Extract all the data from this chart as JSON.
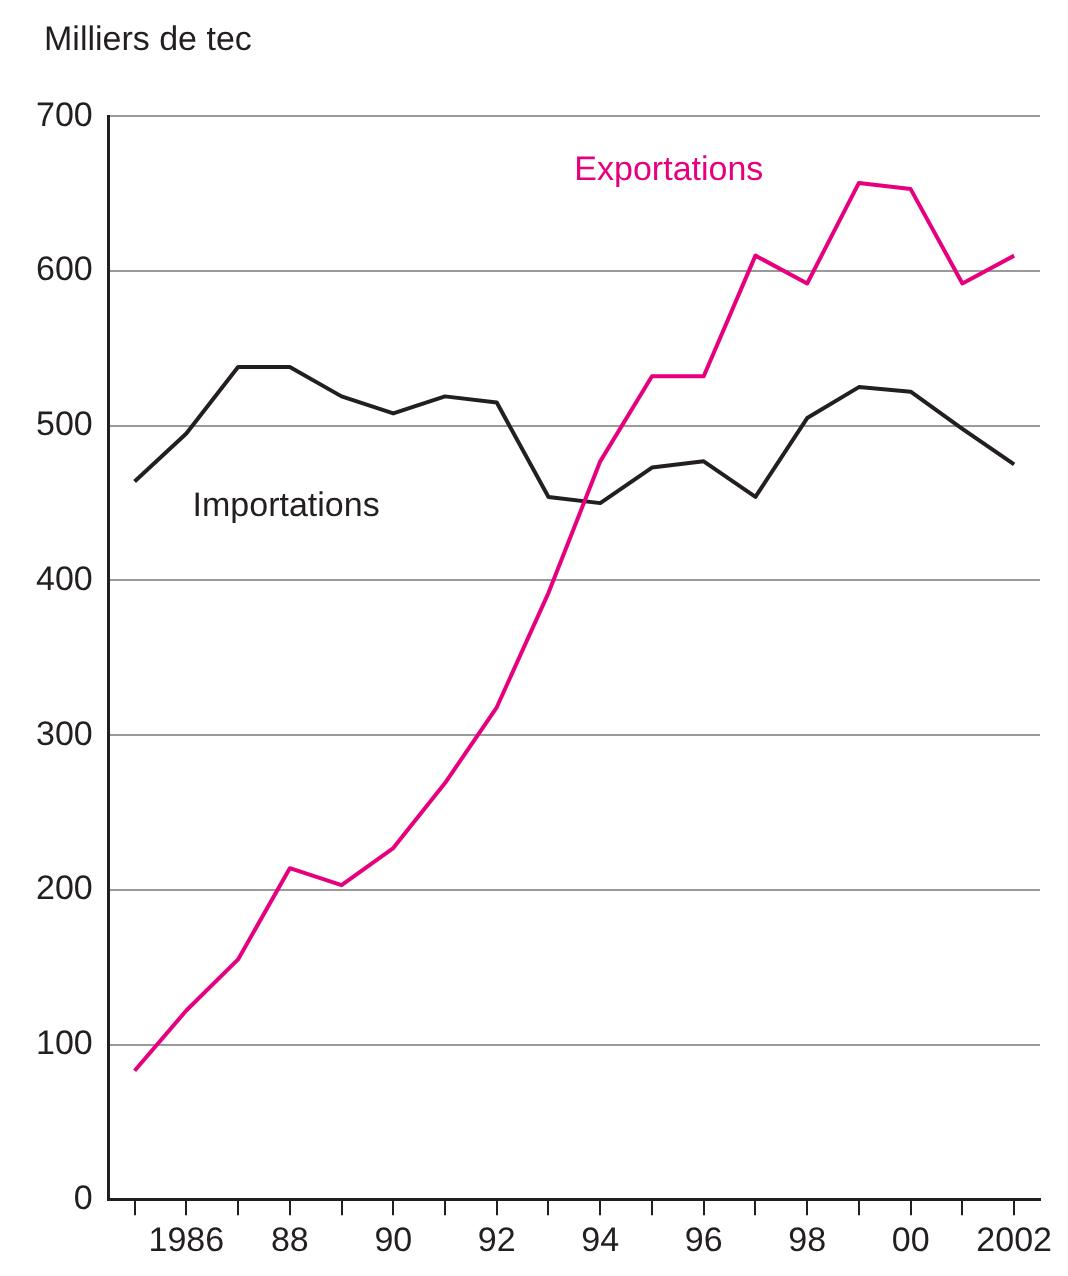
{
  "chart_data": {
    "type": "line",
    "ylabel": "Milliers de tec",
    "x": [
      1985,
      1986,
      1987,
      1988,
      1989,
      1990,
      1991,
      1992,
      1993,
      1994,
      1995,
      1996,
      1997,
      1998,
      1999,
      2000,
      2001,
      2002
    ],
    "series": [
      {
        "name": "Exportations",
        "color": "#e6007e",
        "values": [
          83,
          122,
          155,
          214,
          203,
          227,
          269,
          318,
          392,
          477,
          532,
          532,
          610,
          592,
          657,
          653,
          592,
          610
        ]
      },
      {
        "name": "Importations",
        "color": "#231f20",
        "values": [
          464,
          495,
          538,
          538,
          519,
          508,
          519,
          515,
          454,
          450,
          473,
          477,
          454,
          505,
          525,
          522,
          498,
          475
        ]
      }
    ],
    "xlim": [
      1984.5,
      2002.5
    ],
    "xticks": [
      {
        "value": 1985,
        "label": null
      },
      1986,
      {
        "value": 1987,
        "label": null
      },
      {
        "value": 1988,
        "label": "88"
      },
      {
        "value": 1989,
        "label": null
      },
      {
        "value": 1990,
        "label": "90"
      },
      {
        "value": 1991,
        "label": null
      },
      {
        "value": 1992,
        "label": "92"
      },
      {
        "value": 1993,
        "label": null
      },
      {
        "value": 1994,
        "label": "94"
      },
      {
        "value": 1995,
        "label": null
      },
      {
        "value": 1996,
        "label": "96"
      },
      {
        "value": 1997,
        "label": null
      },
      {
        "value": 1998,
        "label": "98"
      },
      {
        "value": 1999,
        "label": null
      },
      {
        "value": 2000,
        "label": "00"
      },
      {
        "value": 2001,
        "label": null
      },
      2002
    ],
    "ylim": [
      0,
      700
    ],
    "yticks": [
      0,
      100,
      200,
      300,
      400,
      500,
      600,
      700
    ],
    "grid": "y",
    "legend": false,
    "marker": "none",
    "line_style": "solid"
  }
}
